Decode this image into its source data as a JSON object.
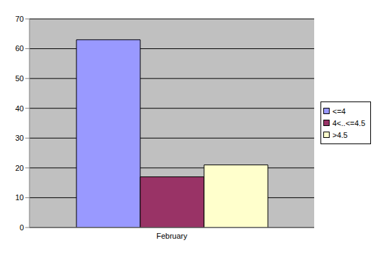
{
  "chart_data": {
    "type": "bar",
    "categories": [
      "February"
    ],
    "series": [
      {
        "name": "<=4",
        "color": "#9999ff",
        "values": [
          63
        ]
      },
      {
        "name": "4<..<=4.5",
        "color": "#993366",
        "values": [
          17
        ]
      },
      {
        "name": ">4.5",
        "color": "#ffffcc",
        "values": [
          21
        ]
      }
    ],
    "ylim": [
      0,
      70
    ],
    "yticks": [
      0,
      10,
      20,
      30,
      40,
      50,
      60,
      70
    ],
    "grid": true,
    "legend": "right"
  }
}
